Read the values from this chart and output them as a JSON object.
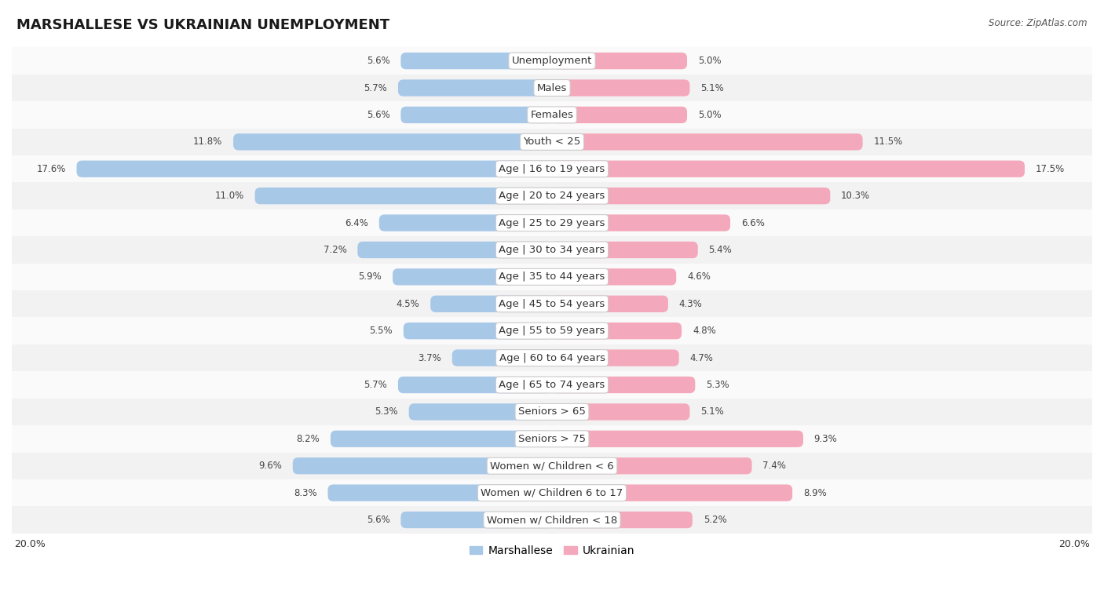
{
  "title": "MARSHALLESE VS UKRAINIAN UNEMPLOYMENT",
  "source": "Source: ZipAtlas.com",
  "categories": [
    "Unemployment",
    "Males",
    "Females",
    "Youth < 25",
    "Age | 16 to 19 years",
    "Age | 20 to 24 years",
    "Age | 25 to 29 years",
    "Age | 30 to 34 years",
    "Age | 35 to 44 years",
    "Age | 45 to 54 years",
    "Age | 55 to 59 years",
    "Age | 60 to 64 years",
    "Age | 65 to 74 years",
    "Seniors > 65",
    "Seniors > 75",
    "Women w/ Children < 6",
    "Women w/ Children 6 to 17",
    "Women w/ Children < 18"
  ],
  "marshallese": [
    5.6,
    5.7,
    5.6,
    11.8,
    17.6,
    11.0,
    6.4,
    7.2,
    5.9,
    4.5,
    5.5,
    3.7,
    5.7,
    5.3,
    8.2,
    9.6,
    8.3,
    5.6
  ],
  "ukrainian": [
    5.0,
    5.1,
    5.0,
    11.5,
    17.5,
    10.3,
    6.6,
    5.4,
    4.6,
    4.3,
    4.8,
    4.7,
    5.3,
    5.1,
    9.3,
    7.4,
    8.9,
    5.2
  ],
  "marshallese_color": "#a8c8e8",
  "ukrainian_color": "#f4a8bc",
  "marshallese_label": "Marshallese",
  "ukrainian_label": "Ukrainian",
  "bar_height": 0.62,
  "xlim": 20.0,
  "row_bg_odd": "#f2f2f2",
  "row_bg_even": "#fafafa",
  "title_fontsize": 13,
  "label_fontsize": 9.5,
  "value_fontsize": 8.5,
  "axis_label_fontsize": 9
}
